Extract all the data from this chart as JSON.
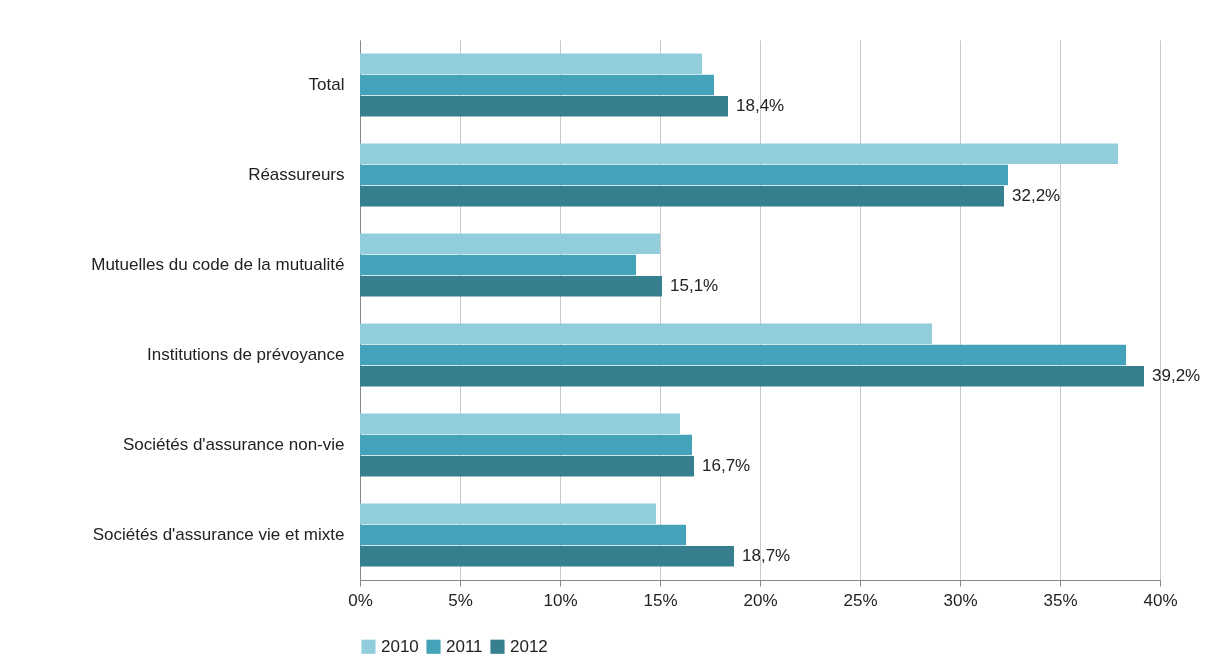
{
  "chart_data": {
    "type": "bar",
    "orientation": "horizontal",
    "categories": [
      "Total",
      "Réassureurs",
      "Mutuelles du code de la mutualité",
      "Institutions de prévoyance",
      "Sociétés d'assurance non-vie",
      "Sociétés d'assurance vie et mixte"
    ],
    "series": [
      {
        "name": "2010",
        "color": "#92cddc",
        "values": [
          17.1,
          37.9,
          15.0,
          28.6,
          16.0,
          14.8
        ]
      },
      {
        "name": "2011",
        "color": "#44a3b8",
        "values": [
          17.7,
          32.4,
          13.8,
          38.3,
          16.6,
          16.3
        ]
      },
      {
        "name": "2012",
        "color": "#357f8e",
        "values": [
          18.4,
          32.2,
          15.1,
          39.2,
          16.7,
          18.7
        ],
        "value_labels": [
          "18,4%",
          "32,2%",
          "15,1%",
          "39,2%",
          "16,7%",
          "18,7%"
        ]
      }
    ],
    "xlim": [
      0,
      40
    ],
    "xticks": [
      {
        "value": 0,
        "label": "0%"
      },
      {
        "value": 5,
        "label": "5%"
      },
      {
        "value": 10,
        "label": "10%"
      },
      {
        "value": 15,
        "label": "15%"
      },
      {
        "value": 20,
        "label": "20%"
      },
      {
        "value": 25,
        "label": "25%"
      },
      {
        "value": 30,
        "label": "30%"
      },
      {
        "value": 35,
        "label": "35%"
      },
      {
        "value": 40,
        "label": "40%"
      }
    ],
    "grid": "x",
    "legend": "bottom"
  }
}
